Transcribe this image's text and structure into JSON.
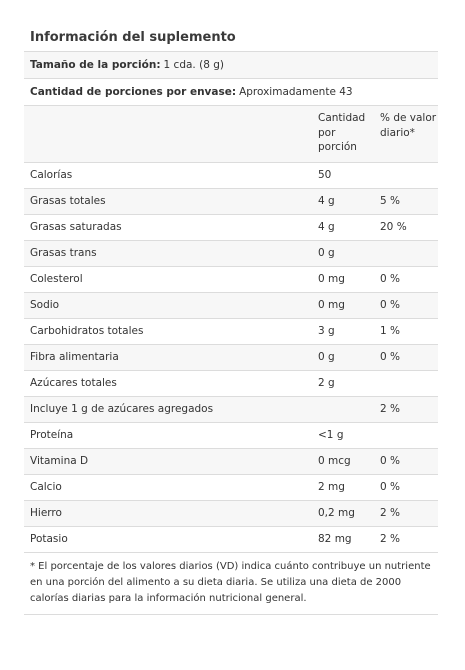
{
  "title": "Información del suplemento",
  "serving_size": {
    "label": "Tamaño de la porción:",
    "value": "1 cda. (8 g)"
  },
  "servings_per_container": {
    "label": "Cantidad de porciones por envase:",
    "value": "Aproximadamente 43"
  },
  "columns": {
    "amount": "Cantidad por porción",
    "daily_value": "% de valor diario*"
  },
  "rows": [
    {
      "name": "Calorías",
      "amount": "50",
      "dv": ""
    },
    {
      "name": "Grasas totales",
      "amount": "4 g",
      "dv": "5 %"
    },
    {
      "name": "Grasas saturadas",
      "amount": "4 g",
      "dv": "20 %"
    },
    {
      "name": "Grasas trans",
      "amount": "0 g",
      "dv": ""
    },
    {
      "name": "Colesterol",
      "amount": "0 mg",
      "dv": "0 %"
    },
    {
      "name": "Sodio",
      "amount": "0 mg",
      "dv": "0 %"
    },
    {
      "name": "Carbohidratos totales",
      "amount": "3 g",
      "dv": "1 %"
    },
    {
      "name": "Fibra alimentaria",
      "amount": "0 g",
      "dv": "0 %"
    },
    {
      "name": "Azúcares totales",
      "amount": "2 g",
      "dv": ""
    },
    {
      "name": "Incluye 1 g de azúcares agregados",
      "amount": "",
      "dv": "2 %"
    },
    {
      "name": "Proteína",
      "amount": "<1 g",
      "dv": ""
    },
    {
      "name": "Vitamina D",
      "amount": "0 mcg",
      "dv": "0 %"
    },
    {
      "name": "Calcio",
      "amount": "2 mg",
      "dv": "0 %"
    },
    {
      "name": "Hierro",
      "amount": "0,2 mg",
      "dv": "2 %"
    },
    {
      "name": "Potasio",
      "amount": "82 mg",
      "dv": "2 %"
    }
  ],
  "footnote": "* El porcentaje de los valores diarios (VD) indica cuánto contribuye un nutriente en una porción del alimento a su dieta diaria. Se utiliza una dieta de 2000 calorías diarias para la información nutricional general."
}
